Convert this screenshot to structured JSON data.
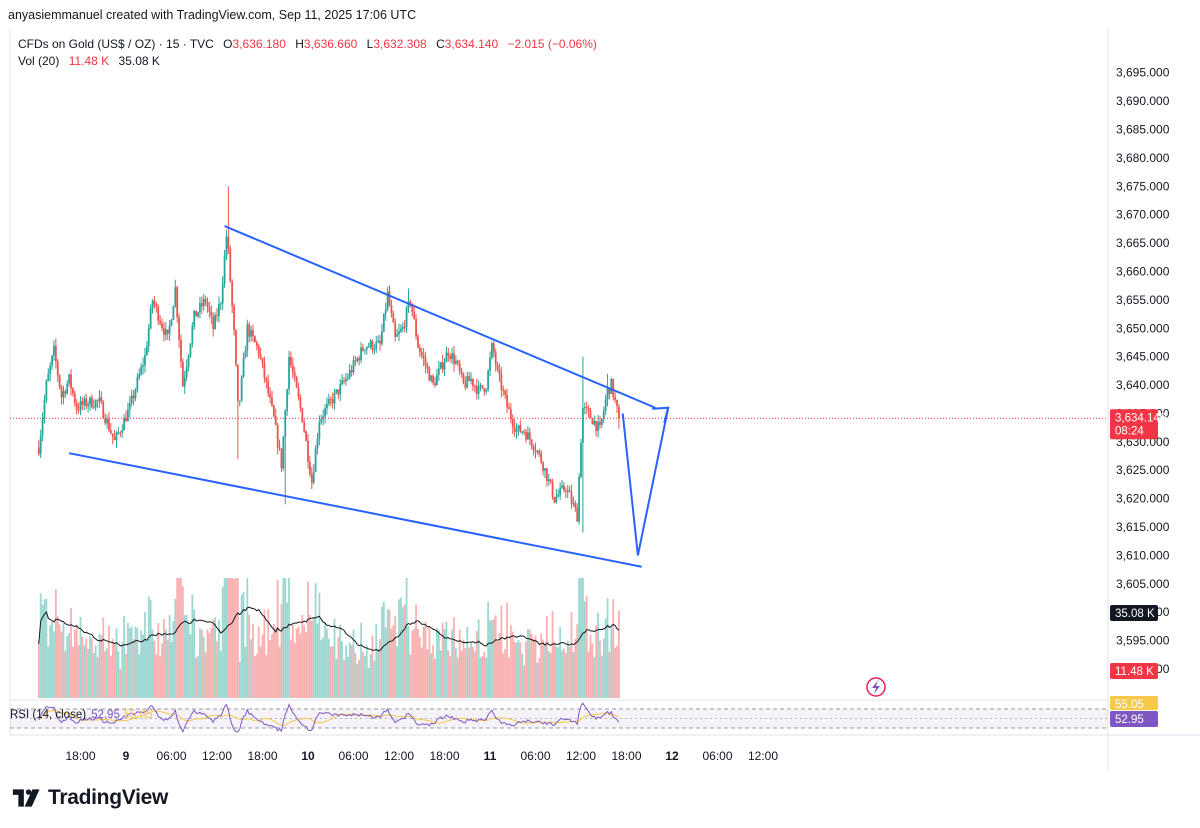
{
  "header": {
    "text": "anyasiemmanuel created with TradingView.com, Sep 11, 2025 17:06 UTC"
  },
  "legend": {
    "symbol": "CFDs on Gold (US$ / OZ) · 15 · TVC",
    "o_label": "O",
    "o": "3,636.180",
    "h_label": "H",
    "h": "3,636.660",
    "l_label": "L",
    "l": "3,632.308",
    "c_label": "C",
    "c": "3,634.140",
    "change": "−2.015 (−0.06%)",
    "vol_label": "Vol (20)",
    "vol_value": "11.48 K",
    "vol_ma": "35.08 K"
  },
  "price_tag": {
    "price": "3,634.140",
    "countdown": "08:24",
    "color": "#f23645"
  },
  "volume_tags": {
    "ma": "35.08 K",
    "vol": "11.48 K"
  },
  "rsi": {
    "label": "RSI (14, close)",
    "value": "52.95",
    "ma_value": "55.05",
    "line_color": "#7e57c2",
    "ma_color": "#f7c948"
  },
  "brand": {
    "name": "TradingView"
  },
  "colors": {
    "up": "#26a69a",
    "down": "#ef5350",
    "trendline": "#2962ff"
  },
  "chart_data": {
    "type": "candlestick",
    "title": "CFDs on Gold (US$ / OZ) · 15 · TVC",
    "y_ticks": [
      "3,590.000",
      "3,595.000",
      "3,600.000",
      "3,605.000",
      "3,610.000",
      "3,615.000",
      "3,620.000",
      "3,625.000",
      "3,630.000",
      "3,635.000",
      "3,640.000",
      "3,645.000",
      "3,650.000",
      "3,655.000",
      "3,660.000",
      "3,665.000",
      "3,670.000",
      "3,675.000",
      "3,680.000",
      "3,685.000",
      "3,690.000",
      "3,695.000"
    ],
    "ylim": [
      3587,
      3699
    ],
    "x_ticks": [
      "18:00",
      "9",
      "06:00",
      "12:00",
      "18:00",
      "10",
      "06:00",
      "12:00",
      "18:00",
      "11",
      "06:00",
      "12:00",
      "18:00",
      "12",
      "06:00",
      "12:00"
    ],
    "bold_x_ticks": [
      "9",
      "10",
      "11",
      "12"
    ],
    "x_tick_hours": [
      -6,
      0,
      6,
      12,
      18,
      24,
      30,
      36,
      42,
      48,
      54,
      60,
      66,
      72,
      78,
      84
    ],
    "last_candle_hour": 65,
    "price_path": [
      [
        -11.5,
        3629
      ],
      [
        -10.5,
        3640
      ],
      [
        -9.5,
        3646
      ],
      [
        -8.5,
        3638
      ],
      [
        -7.5,
        3641
      ],
      [
        -6.5,
        3636
      ],
      [
        -5,
        3637
      ],
      [
        -3.5,
        3637
      ],
      [
        -1.5,
        3630
      ],
      [
        0.5,
        3636
      ],
      [
        2.5,
        3645
      ],
      [
        3.5,
        3655
      ],
      [
        5.5,
        3648
      ],
      [
        6.5,
        3657
      ],
      [
        7.5,
        3640
      ],
      [
        9,
        3652
      ],
      [
        10.5,
        3655
      ],
      [
        11.5,
        3650
      ],
      [
        12.5,
        3655
      ],
      [
        13.3,
        3667
      ],
      [
        14.3,
        3648
      ],
      [
        14.8,
        3635
      ],
      [
        16,
        3650
      ],
      [
        17.5,
        3646
      ],
      [
        19.5,
        3634
      ],
      [
        20.5,
        3626
      ],
      [
        21.5,
        3645
      ],
      [
        23.3,
        3634
      ],
      [
        24.5,
        3623
      ],
      [
        25.5,
        3634
      ],
      [
        27,
        3637
      ],
      [
        29,
        3641
      ],
      [
        31.5,
        3647
      ],
      [
        33.5,
        3647
      ],
      [
        34.5,
        3656
      ],
      [
        35.5,
        3648
      ],
      [
        36.5,
        3650
      ],
      [
        37.5,
        3655
      ],
      [
        38.5,
        3647
      ],
      [
        40.5,
        3640
      ],
      [
        42.5,
        3646
      ],
      [
        43.5,
        3644
      ],
      [
        44.5,
        3640
      ],
      [
        45.5,
        3641
      ],
      [
        46.5,
        3639
      ],
      [
        47.5,
        3640
      ],
      [
        48.3,
        3647
      ],
      [
        49,
        3642
      ],
      [
        50.3,
        3636
      ],
      [
        51.5,
        3632
      ],
      [
        52.5,
        3632
      ],
      [
        54,
        3629
      ],
      [
        55,
        3626
      ],
      [
        56.5,
        3620
      ],
      [
        58,
        3622
      ],
      [
        59.5,
        3617
      ],
      [
        60.2,
        3636
      ],
      [
        61.5,
        3634
      ],
      [
        62.5,
        3632
      ],
      [
        63.5,
        3639
      ],
      [
        64,
        3640
      ],
      [
        65,
        3634
      ]
    ],
    "annotations": {
      "resistance_line": [
        [
          13.0,
          3668
        ],
        [
          69.8,
          3636
        ]
      ],
      "support_line": [
        [
          -7.5,
          3628
        ],
        [
          68.0,
          3608
        ]
      ],
      "projection_arrow": [
        [
          65.5,
          3635
        ],
        [
          67.5,
          3610
        ],
        [
          71.5,
          3636
        ]
      ]
    },
    "current_price": 3634.14
  }
}
